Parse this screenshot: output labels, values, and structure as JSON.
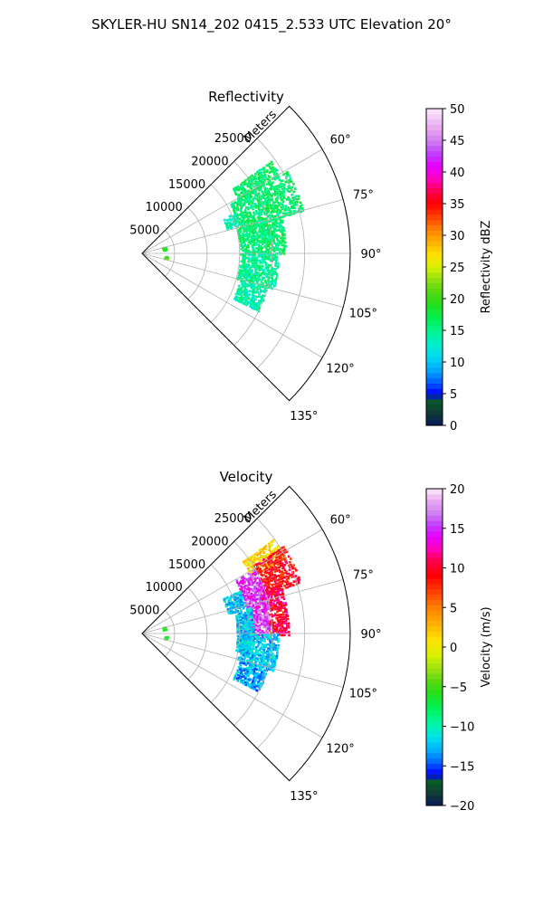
{
  "figure": {
    "title": "SKYLER-HU  SN14_202  0415_2.533 UTC Elevation 20°"
  },
  "chart_data": [
    {
      "type": "heatmap",
      "subtype": "polar-sector",
      "title": "Reflectivity",
      "range_label": "Meters",
      "range_ticks": [
        5000,
        10000,
        15000,
        20000,
        25000
      ],
      "range_tick_labels": [
        "5000",
        "10000",
        "15000",
        "20000",
        "25000"
      ],
      "range_max": 32000,
      "azimuth_range_deg": [
        45,
        135
      ],
      "azimuth_ticks": [
        60,
        75,
        90,
        105,
        120,
        135
      ],
      "azimuth_tick_labels": [
        "60°",
        "75°",
        "90°",
        "105°",
        "120°",
        "135°"
      ],
      "grid": true,
      "colorbar": {
        "label": "Reflectivity dBZ",
        "range": [
          0,
          50
        ],
        "ticks": [
          0,
          5,
          10,
          15,
          20,
          25,
          30,
          35,
          40,
          45,
          50
        ],
        "tick_labels": [
          "0",
          "5",
          "10",
          "15",
          "20",
          "25",
          "30",
          "35",
          "40",
          "45",
          "50"
        ],
        "colormap": "pyart_NWSRef",
        "stops": [
          {
            "value": 0,
            "color": "#0a1a5e"
          },
          {
            "value": 2,
            "color": "#0e3a36"
          },
          {
            "value": 4,
            "color": "#0a5a2a"
          },
          {
            "value": 5,
            "color": "#0000ff"
          },
          {
            "value": 7,
            "color": "#0066ff"
          },
          {
            "value": 9,
            "color": "#00b0ff"
          },
          {
            "value": 11,
            "color": "#00ddee"
          },
          {
            "value": 13,
            "color": "#00f0c8"
          },
          {
            "value": 15,
            "color": "#00f58c"
          },
          {
            "value": 17,
            "color": "#00f050"
          },
          {
            "value": 19,
            "color": "#20e020"
          },
          {
            "value": 21,
            "color": "#50d810"
          },
          {
            "value": 23,
            "color": "#90e010"
          },
          {
            "value": 25,
            "color": "#d8f000"
          },
          {
            "value": 27,
            "color": "#ffe000"
          },
          {
            "value": 29,
            "color": "#ffb000"
          },
          {
            "value": 31,
            "color": "#ff8000"
          },
          {
            "value": 33,
            "color": "#ff4000"
          },
          {
            "value": 35,
            "color": "#ff0000"
          },
          {
            "value": 37,
            "color": "#ff0050"
          },
          {
            "value": 39,
            "color": "#ff00c0"
          },
          {
            "value": 41,
            "color": "#e600ff"
          },
          {
            "value": 43,
            "color": "#c040ff"
          },
          {
            "value": 45,
            "color": "#d080f0"
          },
          {
            "value": 47,
            "color": "#e8a8f0"
          },
          {
            "value": 50,
            "color": "#fde8fd"
          }
        ]
      },
      "echo_regions": [
        {
          "az": [
            54,
            60
          ],
          "r": [
            17000,
            24500
          ],
          "value": 16
        },
        {
          "az": [
            60,
            75
          ],
          "r": [
            15500,
            25500
          ],
          "value": 16
        },
        {
          "az": [
            75,
            90
          ],
          "r": [
            15000,
            22000
          ],
          "value": 16
        },
        {
          "az": [
            90,
            105
          ],
          "r": [
            15000,
            21000
          ],
          "value": 15
        },
        {
          "az": [
            105,
            116
          ],
          "r": [
            15500,
            20000
          ],
          "value": 14
        },
        {
          "az": [
            66,
            74
          ],
          "r": [
            13500,
            15500
          ],
          "value": 14
        },
        {
          "az": [
            72,
            80
          ],
          "r": [
            3200,
            3800
          ],
          "value": 19
        },
        {
          "az": [
            96,
            102
          ],
          "r": [
            3400,
            3900
          ],
          "value": 20
        }
      ]
    },
    {
      "type": "heatmap",
      "subtype": "polar-sector",
      "title": "Velocity",
      "range_label": "Meters",
      "range_ticks": [
        5000,
        10000,
        15000,
        20000,
        25000
      ],
      "range_tick_labels": [
        "5000",
        "10000",
        "15000",
        "20000",
        "25000"
      ],
      "range_max": 32000,
      "azimuth_range_deg": [
        45,
        135
      ],
      "azimuth_ticks": [
        60,
        75,
        90,
        105,
        120,
        135
      ],
      "azimuth_tick_labels": [
        "60°",
        "75°",
        "90°",
        "105°",
        "120°",
        "135°"
      ],
      "grid": true,
      "colorbar": {
        "label": "Velocity (m/s)",
        "range": [
          -20,
          20
        ],
        "ticks": [
          -20,
          -15,
          -10,
          -5,
          0,
          5,
          10,
          15,
          20
        ],
        "tick_labels": [
          "−20",
          "−15",
          "−10",
          "−5",
          "0",
          "5",
          "10",
          "15",
          "20"
        ],
        "colormap": "pyart_NWSVel",
        "stops": [
          {
            "value": -20,
            "color": "#0a1a5e"
          },
          {
            "value": -18.5,
            "color": "#0e3a36"
          },
          {
            "value": -17,
            "color": "#0a5a2a"
          },
          {
            "value": -16,
            "color": "#0000ff"
          },
          {
            "value": -14.5,
            "color": "#0066ff"
          },
          {
            "value": -13,
            "color": "#00b0ff"
          },
          {
            "value": -11.5,
            "color": "#00ddee"
          },
          {
            "value": -10.5,
            "color": "#00f0c8"
          },
          {
            "value": -9,
            "color": "#00f58c"
          },
          {
            "value": -7.5,
            "color": "#00f050"
          },
          {
            "value": -6,
            "color": "#20e020"
          },
          {
            "value": -4.5,
            "color": "#50d810"
          },
          {
            "value": -3,
            "color": "#90e010"
          },
          {
            "value": -1,
            "color": "#d8f000"
          },
          {
            "value": 1,
            "color": "#ffe000"
          },
          {
            "value": 3,
            "color": "#ffb000"
          },
          {
            "value": 5,
            "color": "#ff8000"
          },
          {
            "value": 7,
            "color": "#ff4000"
          },
          {
            "value": 9,
            "color": "#ff0000"
          },
          {
            "value": 11,
            "color": "#ff0050"
          },
          {
            "value": 12.5,
            "color": "#ff00c0"
          },
          {
            "value": 14,
            "color": "#e600ff"
          },
          {
            "value": 15.5,
            "color": "#c040ff"
          },
          {
            "value": 17,
            "color": "#d080f0"
          },
          {
            "value": 18.5,
            "color": "#e8a8f0"
          },
          {
            "value": 20,
            "color": "#fde8fd"
          }
        ]
      },
      "echo_regions": [
        {
          "az": [
            54,
            62
          ],
          "r": [
            19000,
            25000
          ],
          "value": 1
        },
        {
          "az": [
            58,
            72
          ],
          "r": [
            20000,
            25500
          ],
          "value": 9
        },
        {
          "az": [
            70,
            90
          ],
          "r": [
            19000,
            22500
          ],
          "value": 10
        },
        {
          "az": [
            60,
            80
          ],
          "r": [
            16500,
            20000
          ],
          "value": 15
        },
        {
          "az": [
            80,
            92
          ],
          "r": [
            15500,
            19500
          ],
          "value": 16
        },
        {
          "az": [
            66,
            76
          ],
          "r": [
            13500,
            16500
          ],
          "value": -12
        },
        {
          "az": [
            76,
            100
          ],
          "r": [
            14500,
            17000
          ],
          "value": -12
        },
        {
          "az": [
            90,
            106
          ],
          "r": [
            15000,
            21000
          ],
          "value": -12
        },
        {
          "az": [
            105,
            116
          ],
          "r": [
            15500,
            20000
          ],
          "value": -13
        },
        {
          "az": [
            72,
            80
          ],
          "r": [
            3200,
            3800
          ],
          "value": -5
        },
        {
          "az": [
            96,
            102
          ],
          "r": [
            3400,
            3900
          ],
          "value": -6
        }
      ]
    }
  ]
}
